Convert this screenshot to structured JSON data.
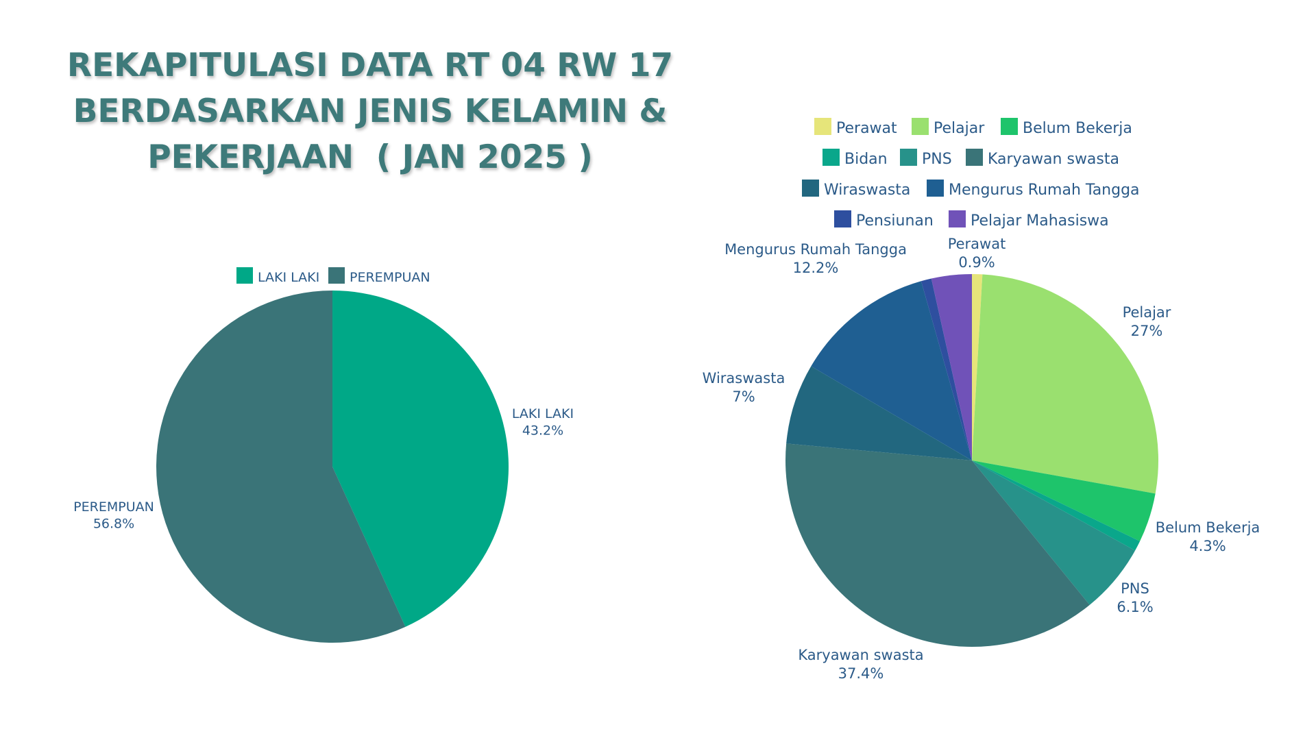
{
  "title": {
    "line1": "REKAPITULASI DATA RT 04 RW 17",
    "line2": "BERDASARKAN JENIS KELAMIN &",
    "line3": "PEKERJAAN  ( JAN 2025 )"
  },
  "chart_data": [
    {
      "type": "pie",
      "title": "Jenis Kelamin",
      "legend_position": "top",
      "categories": [
        "LAKI LAKI",
        "PEREMPUAN"
      ],
      "values": [
        43.2,
        56.8
      ],
      "value_labels": [
        "43.2%",
        "56.8%"
      ],
      "colors": [
        "#00a887",
        "#3a7478"
      ]
    },
    {
      "type": "pie",
      "title": "Pekerjaan",
      "legend_position": "top",
      "legend_rows": [
        [
          "Perawat",
          "Pelajar",
          "Belum Bekerja"
        ],
        [
          "Bidan",
          "PNS",
          "Karyawan swasta"
        ],
        [
          "Wiraswasta",
          "Mengurus Rumah Tangga"
        ],
        [
          "Pensiunan",
          "Pelajar Mahasiswa"
        ]
      ],
      "categories": [
        "Perawat",
        "Pelajar",
        "Belum Bekerja",
        "Bidan",
        "PNS",
        "Karyawan swasta",
        "Wiraswasta",
        "Mengurus Rumah Tangga",
        "Pensiunan",
        "Pelajar Mahasiswa"
      ],
      "values": [
        0.9,
        27,
        4.3,
        0.9,
        6.1,
        37.4,
        7,
        12.2,
        0.9,
        3.5
      ],
      "value_labels": [
        "0.9%",
        "27%",
        "4.3%",
        null,
        "6.1%",
        "37.4%",
        "7%",
        "12.2%",
        null,
        null
      ],
      "colors": [
        "#e6e57a",
        "#9ae06f",
        "#1ec46b",
        "#0aa78b",
        "#27928a",
        "#3a7478",
        "#22677f",
        "#1f5f92",
        "#2e4f9f",
        "#7052b8"
      ]
    }
  ]
}
